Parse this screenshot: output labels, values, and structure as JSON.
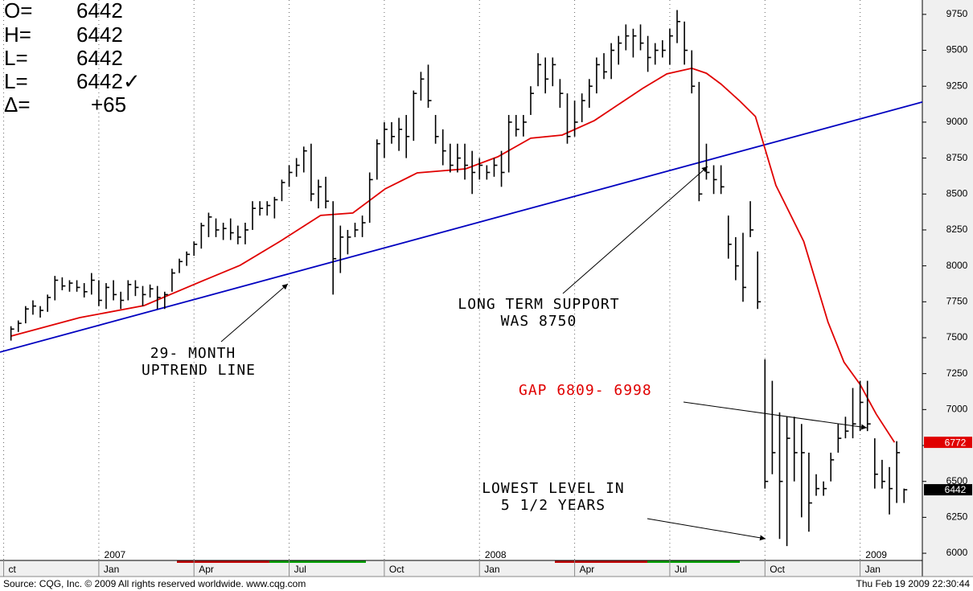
{
  "chart_data": {
    "type": "ohlc",
    "info": [
      {
        "label": "O=",
        "value": "6442"
      },
      {
        "label": "H=",
        "value": "6442"
      },
      {
        "label": "L=",
        "value": "6442"
      },
      {
        "label": "L=",
        "value": "6442✓"
      },
      {
        "label": "Δ=",
        "value": "+65"
      }
    ],
    "xlim": [
      0.5,
      126.5
    ],
    "ylim": [
      5950,
      9850
    ],
    "yticks": [
      6000,
      6250,
      6500,
      6750,
      7000,
      7250,
      7500,
      7750,
      8000,
      8250,
      8500,
      8750,
      9000,
      9250,
      9500,
      9750
    ],
    "xticks": [
      {
        "value": 1,
        "label": "ct"
      },
      {
        "value": 14,
        "label": "Jan"
      },
      {
        "value": 27,
        "label": "Apr"
      },
      {
        "value": 40,
        "label": "Jul"
      },
      {
        "value": 53,
        "label": "Oct"
      },
      {
        "value": 66,
        "label": "Jan"
      },
      {
        "value": 79,
        "label": "Apr"
      },
      {
        "value": 92,
        "label": "Jul"
      },
      {
        "value": 105,
        "label": "Oct"
      },
      {
        "value": 118,
        "label": "Jan"
      }
    ],
    "year_labels": [
      {
        "value": 14,
        "label": "2007"
      },
      {
        "value": 66,
        "label": "2008"
      },
      {
        "value": 118,
        "label": "2009"
      }
    ],
    "grid": "x",
    "bars": {
      "color": "#000000",
      "x": [
        2,
        3,
        4,
        5,
        6,
        7,
        8,
        9,
        10,
        11,
        12,
        13,
        14,
        15,
        16,
        17,
        18,
        19,
        20,
        21,
        22,
        23,
        24,
        25,
        26,
        27,
        28,
        29,
        30,
        31,
        32,
        33,
        34,
        35,
        36,
        37,
        38,
        39,
        40,
        41,
        42,
        43,
        44,
        45,
        46,
        47,
        48,
        49,
        50,
        51,
        52,
        53,
        54,
        55,
        56,
        57,
        58,
        59,
        60,
        61,
        62,
        63,
        64,
        65,
        66,
        67,
        68,
        69,
        70,
        71,
        72,
        73,
        74,
        75,
        76,
        77,
        78,
        79,
        80,
        81,
        82,
        83,
        84,
        85,
        86,
        87,
        88,
        89,
        90,
        91,
        92,
        93,
        94,
        95,
        96,
        97,
        98,
        99,
        100,
        101,
        102,
        103,
        104,
        105,
        106,
        107,
        108,
        109,
        110,
        111,
        112,
        113,
        114,
        115,
        116,
        117,
        118,
        119,
        120,
        121,
        122,
        123,
        124
      ],
      "high": [
        7580,
        7620,
        7720,
        7760,
        7720,
        7800,
        7930,
        7920,
        7900,
        7900,
        7880,
        7950,
        7900,
        7880,
        7900,
        7820,
        7900,
        7900,
        7860,
        7870,
        7860,
        7820,
        7980,
        8050,
        8100,
        8170,
        8300,
        8370,
        8330,
        8300,
        8330,
        8280,
        8300,
        8450,
        8450,
        8450,
        8480,
        8600,
        8700,
        8750,
        8830,
        8850,
        8600,
        8620,
        8450,
        8280,
        8250,
        8300,
        8350,
        8650,
        8880,
        9000,
        9000,
        9030,
        9050,
        9220,
        9350,
        9400,
        9050,
        8950,
        8850,
        8850,
        8850,
        8800,
        8750,
        8700,
        8750,
        8800,
        9050,
        9050,
        9050,
        9250,
        9480,
        9450,
        9450,
        9300,
        9200,
        9150,
        9200,
        9300,
        9450,
        9480,
        9550,
        9600,
        9680,
        9650,
        9680,
        9600,
        9550,
        9570,
        9650,
        9780,
        9700,
        9500,
        9280,
        8850,
        8700,
        8700,
        8350,
        8200,
        8230,
        8450,
        8100,
        7350,
        7200,
        6980,
        6950,
        6950,
        6900,
        6700,
        6550,
        6500,
        6700,
        6900,
        6950,
        7150,
        7200,
        7200,
        6800,
        6650,
        6600,
        6780,
        6450
      ],
      "low": [
        7480,
        7540,
        7600,
        7660,
        7640,
        7680,
        7760,
        7830,
        7820,
        7820,
        7780,
        7800,
        7720,
        7700,
        7760,
        7700,
        7760,
        7790,
        7720,
        7780,
        7700,
        7700,
        7820,
        7950,
        8000,
        8070,
        8120,
        8200,
        8200,
        8180,
        8180,
        8150,
        8150,
        8250,
        8350,
        8350,
        8330,
        8450,
        8550,
        8620,
        8650,
        8450,
        8400,
        8400,
        7800,
        7950,
        8080,
        8200,
        8200,
        8300,
        8600,
        8750,
        8850,
        8800,
        8750,
        8870,
        9150,
        9100,
        8850,
        8700,
        8650,
        8650,
        8600,
        8500,
        8600,
        8600,
        8620,
        8550,
        8650,
        8900,
        8900,
        9050,
        9250,
        9200,
        9250,
        9100,
        8850,
        8900,
        9000,
        9100,
        9200,
        9300,
        9300,
        9400,
        9500,
        9450,
        9500,
        9350,
        9400,
        9450,
        9400,
        9550,
        9400,
        9200,
        8450,
        8600,
        8500,
        8500,
        8050,
        7900,
        7750,
        8200,
        7700,
        6450,
        6550,
        6100,
        6050,
        6500,
        6250,
        6150,
        6400,
        6400,
        6500,
        6700,
        6800,
        6800,
        6850,
        6850,
        6450,
        6450,
        6270,
        6350,
        6350
      ],
      "close": [
        7560,
        7600,
        7700,
        7720,
        7690,
        7780,
        7900,
        7860,
        7880,
        7850,
        7820,
        7900,
        7760,
        7850,
        7800,
        7760,
        7870,
        7850,
        7800,
        7840,
        7780,
        7800,
        7950,
        8030,
        8080,
        8150,
        8280,
        8340,
        8250,
        8260,
        8230,
        8200,
        8250,
        8400,
        8400,
        8420,
        8460,
        8580,
        8650,
        8700,
        8800,
        8500,
        8550,
        8450,
        8050,
        8200,
        8200,
        8250,
        8300,
        8600,
        8850,
        8950,
        8900,
        8950,
        8900,
        9200,
        9300,
        9150,
        8900,
        8800,
        8700,
        8750,
        8700,
        8650,
        8700,
        8650,
        8700,
        8650,
        9000,
        8950,
        9000,
        9200,
        9400,
        9300,
        9400,
        9200,
        8900,
        9000,
        9150,
        9250,
        9400,
        9350,
        9500,
        9550,
        9600,
        9600,
        9550,
        9450,
        9500,
        9500,
        9600,
        9700,
        9500,
        9250,
        8500,
        8650,
        8600,
        8550,
        8150,
        8000,
        7850,
        8250,
        7750,
        6500,
        6700,
        6500,
        6800,
        6700,
        6700,
        6350,
        6450,
        6450,
        6650,
        6800,
        6850,
        6900,
        7050,
        6900,
        6550,
        6500,
        6450,
        6700,
        6442
      ]
    },
    "moving_average": {
      "color": "#e00000",
      "x": [
        2,
        11.4,
        20.2,
        26.7,
        33.3,
        38.8,
        44.3,
        48.7,
        53.1,
        57.5,
        64.1,
        68.5,
        73,
        77.3,
        81.7,
        88.3,
        91.6,
        95,
        97,
        99,
        101.5,
        103.7,
        106.5,
        110.3,
        113.6,
        115.8,
        118,
        120.2,
        122.7
      ],
      "values": [
        7511,
        7640,
        7724,
        7864,
        8004,
        8172,
        8351,
        8368,
        8535,
        8647,
        8675,
        8759,
        8888,
        8910,
        9011,
        9235,
        9336,
        9375,
        9340,
        9265,
        9150,
        9040,
        8560,
        8170,
        7610,
        7330,
        7175,
        6968,
        6772
      ]
    },
    "trend_line": {
      "color": "#0000c0",
      "x": [
        0.5,
        126.5
      ],
      "values": [
        7400,
        9140
      ]
    },
    "price_labels": [
      {
        "value": 6772,
        "color": "#e00000"
      },
      {
        "value": 6442,
        "color": "#000000"
      }
    ],
    "annotations": [
      {
        "lines": [
          "29- MONTH",
          "UPTREND LINE"
        ],
        "color": "#000000"
      },
      {
        "lines": [
          "LONG TERM SUPPORT",
          "WAS 8750"
        ],
        "color": "#000000"
      },
      {
        "lines": [
          "GAP 6809- 6998"
        ],
        "color": "#e00000"
      },
      {
        "lines": [
          "LOWEST LEVEL IN",
          "5 1/2 YEARS"
        ],
        "color": "#000000"
      }
    ],
    "source": "Source: CQG, Inc. © 2009 All rights reserved worldwide. www.cqg.com",
    "timestamp": "Thu Feb 19 2009 22:30:44"
  }
}
